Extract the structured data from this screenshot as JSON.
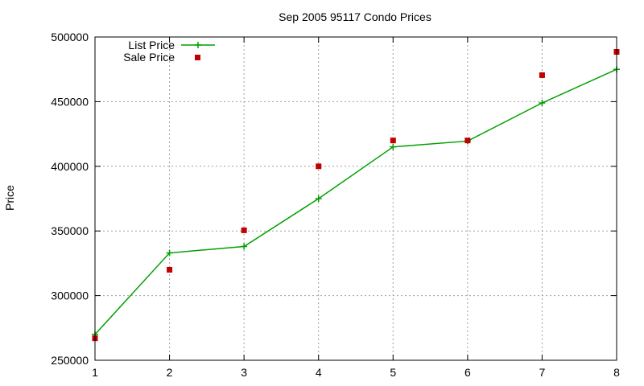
{
  "chart_data": {
    "type": "line",
    "title": "Sep 2005 95117 Condo Prices",
    "xlabel": "",
    "ylabel": "Price",
    "x": [
      1,
      2,
      3,
      4,
      5,
      6,
      7,
      8
    ],
    "xlim": [
      1,
      8
    ],
    "ylim": [
      250000,
      500000
    ],
    "xticks": [
      "1",
      "2",
      "3",
      "4",
      "5",
      "6",
      "7",
      "8"
    ],
    "yticks": [
      "250000",
      "300000",
      "350000",
      "400000",
      "450000",
      "500000"
    ],
    "grid": true,
    "legend_position": "top-left",
    "series": [
      {
        "name": "List Price",
        "style": "line-plus",
        "color": "#00a000",
        "values": [
          270000,
          333000,
          338000,
          375000,
          415000,
          419500,
          449000,
          475000
        ]
      },
      {
        "name": "Sale Price",
        "style": "square-points",
        "color": "#c00000",
        "values": [
          267000,
          320000,
          350500,
          400000,
          420000,
          420000,
          470500,
          488500
        ]
      }
    ]
  }
}
